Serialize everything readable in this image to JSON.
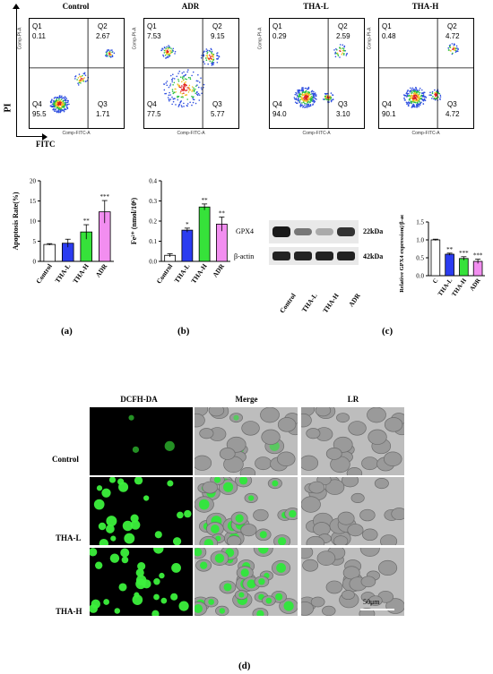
{
  "flow": {
    "y_axis_label": "PI",
    "x_axis_label": "FITC",
    "plot_ylabel": "Comp-PI-A",
    "plot_xlabel": "Comp-FITC-A",
    "panels": [
      {
        "title": "Control",
        "q1": "Q1",
        "q1v": "0.11",
        "q2": "Q2",
        "q2v": "2.67",
        "q3": "Q3",
        "q3v": "1.71",
        "q4": "Q4",
        "q4v": "95.5"
      },
      {
        "title": "ADR",
        "q1": "Q1",
        "q1v": "7.53",
        "q2": "Q2",
        "q2v": "9.15",
        "q3": "Q3",
        "q3v": "5.77",
        "q4": "Q4",
        "q4v": "77.5"
      },
      {
        "title": "THA-L",
        "q1": "Q1",
        "q1v": "0.29",
        "q2": "Q2",
        "q2v": "2.59",
        "q3": "Q3",
        "q3v": "3.10",
        "q4": "Q4",
        "q4v": "94.0"
      },
      {
        "title": "THA-H",
        "q1": "Q1",
        "q1v": "0.48",
        "q2": "Q2",
        "q2v": "4.72",
        "q3": "Q3",
        "q3v": "4.72",
        "q4": "Q4",
        "q4v": "90.1"
      }
    ]
  },
  "chart_data": [
    {
      "type": "bar",
      "ylabel": "Apoptosis Rate(%)",
      "categories": [
        "Control",
        "THA-L",
        "THA-H",
        "ADR"
      ],
      "values": [
        4.2,
        4.5,
        7.3,
        12.3
      ],
      "errors": [
        0.2,
        1.0,
        1.8,
        2.8
      ],
      "significance": [
        "",
        "",
        "**",
        "***"
      ],
      "ylim": [
        0,
        20
      ],
      "yticks": [
        "0",
        "5",
        "10",
        "15",
        "20"
      ],
      "colors": [
        "#ffffff",
        "#2b3cf0",
        "#36e23a",
        "#f28ef0"
      ]
    },
    {
      "type": "bar",
      "ylabel": "Fe²⁺ (nmol/10⁶)",
      "categories": [
        "Control",
        "THA-L",
        "THA-H",
        "ADR"
      ],
      "values": [
        0.03,
        0.155,
        0.27,
        0.185
      ],
      "errors": [
        0.008,
        0.01,
        0.015,
        0.035
      ],
      "significance": [
        "",
        "*",
        "**",
        "**"
      ],
      "ylim": [
        0,
        0.4
      ],
      "yticks": [
        "0.0",
        "0.1",
        "0.2",
        "0.3",
        "0.4"
      ],
      "colors": [
        "#ffffff",
        "#2b3cf0",
        "#36e23a",
        "#f28ef0"
      ]
    },
    {
      "type": "bar",
      "ylabel": "Relative GPX4 expression(/β-actin)",
      "categories": [
        "C",
        "THA-L",
        "THA-H",
        "ADR"
      ],
      "values": [
        1.0,
        0.6,
        0.48,
        0.4
      ],
      "errors": [
        0.02,
        0.03,
        0.05,
        0.06
      ],
      "significance": [
        "",
        "**",
        "***",
        "***"
      ],
      "ylim": [
        0,
        1.5
      ],
      "yticks": [
        "0.0",
        "0.5",
        "1.0",
        "1.5"
      ],
      "colors": [
        "#ffffff",
        "#2b3cf0",
        "#36e23a",
        "#f28ef0"
      ]
    }
  ],
  "western": {
    "bands": [
      "GPX4",
      "β-actin"
    ],
    "sizes": [
      "22kDa",
      "42kDa"
    ],
    "lanes": [
      "Control",
      "THA-L",
      "THA-H",
      "ADR"
    ]
  },
  "panel_labels": [
    "(a)",
    "(b)",
    "(c)",
    "(d)"
  ],
  "micro": {
    "columns": [
      "DCFH-DA",
      "Merge",
      "LR"
    ],
    "rows": [
      "Control",
      "THA-L",
      "THA-H"
    ],
    "scale_bar": "50μm"
  }
}
